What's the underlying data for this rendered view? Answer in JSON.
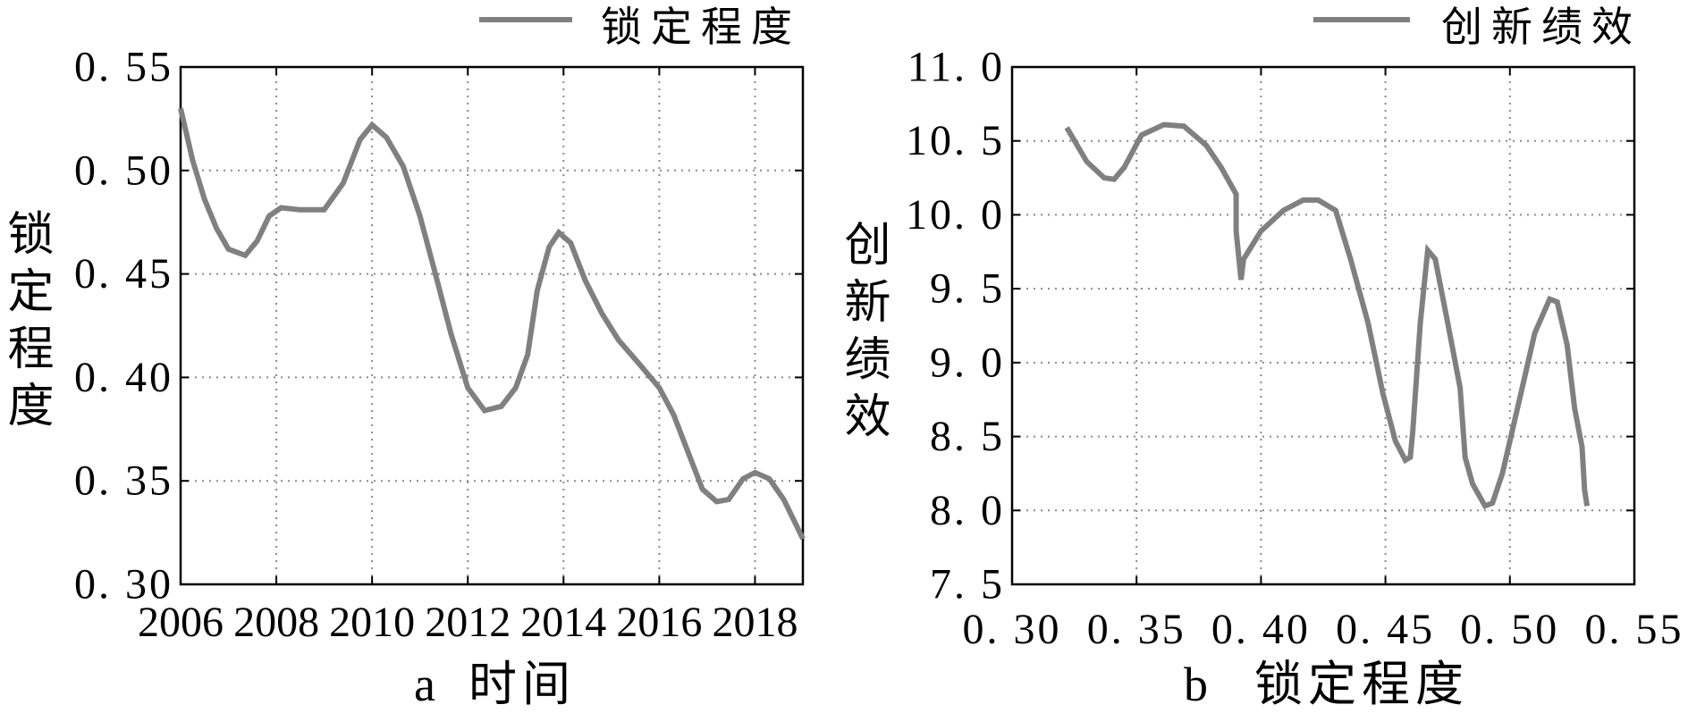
{
  "chart_data": [
    {
      "type": "line",
      "panel_label": "a",
      "title": "",
      "xlabel": "时间",
      "ylabel": "锁定程度",
      "xlim": [
        2006,
        2019
      ],
      "ylim": [
        0.3,
        0.55
      ],
      "xticks": [
        2006,
        2008,
        2010,
        2012,
        2014,
        2016,
        2018
      ],
      "xtick_labels": [
        "2006",
        "2008",
        "2010",
        "2012",
        "2014",
        "2016",
        "2018"
      ],
      "yticks": [
        0.3,
        0.35,
        0.4,
        0.45,
        0.5,
        0.55
      ],
      "ytick_labels": [
        "0. 30",
        "0. 35",
        "0. 40",
        "0. 45",
        "0. 50",
        "0. 55"
      ],
      "grid": true,
      "legend_position": "top-right",
      "series": [
        {
          "name": "锁定程度",
          "color": "#808080",
          "x": [
            2006.0,
            2006.25,
            2006.5,
            2006.75,
            2007.0,
            2007.35,
            2007.6,
            2007.85,
            2008.1,
            2008.5,
            2009.0,
            2009.4,
            2009.75,
            2010.0,
            2010.3,
            2010.65,
            2011.0,
            2011.3,
            2011.65,
            2012.0,
            2012.35,
            2012.7,
            2013.0,
            2013.25,
            2013.45,
            2013.7,
            2013.9,
            2014.15,
            2014.45,
            2014.8,
            2015.15,
            2015.6,
            2016.0,
            2016.3,
            2016.6,
            2016.9,
            2017.2,
            2017.45,
            2017.75,
            2018.0,
            2018.3,
            2018.6,
            2019.0
          ],
          "y": [
            0.53,
            0.505,
            0.486,
            0.472,
            0.462,
            0.459,
            0.466,
            0.478,
            0.482,
            0.481,
            0.481,
            0.494,
            0.515,
            0.522,
            0.516,
            0.502,
            0.478,
            0.452,
            0.421,
            0.395,
            0.384,
            0.386,
            0.395,
            0.411,
            0.442,
            0.463,
            0.47,
            0.465,
            0.447,
            0.431,
            0.418,
            0.406,
            0.395,
            0.382,
            0.364,
            0.346,
            0.34,
            0.341,
            0.351,
            0.354,
            0.351,
            0.341,
            0.322
          ]
        }
      ]
    },
    {
      "type": "line",
      "panel_label": "b",
      "title": "",
      "xlabel": "锁定程度",
      "ylabel": "创新绩效",
      "xlim": [
        0.3,
        0.55
      ],
      "ylim": [
        7.5,
        11.0
      ],
      "xticks": [
        0.3,
        0.35,
        0.4,
        0.45,
        0.5,
        0.55
      ],
      "xtick_labels": [
        "0. 30",
        "0. 35",
        "0. 40",
        "0. 45",
        "0. 50",
        "0. 55"
      ],
      "yticks": [
        7.5,
        8.0,
        8.5,
        9.0,
        9.5,
        10.0,
        10.5,
        11.0
      ],
      "ytick_labels": [
        "7. 5",
        "8. 0",
        "8. 5",
        "9. 0",
        "9. 5",
        "10. 0",
        "10. 5",
        "11. 0"
      ],
      "grid": true,
      "legend_position": "top-right",
      "series": [
        {
          "name": "创新绩效",
          "color": "#808080",
          "x": [
            0.322,
            0.33,
            0.337,
            0.341,
            0.345,
            0.352,
            0.361,
            0.369,
            0.378,
            0.384,
            0.39,
            0.39,
            0.392,
            0.393,
            0.4,
            0.409,
            0.417,
            0.423,
            0.43,
            0.436,
            0.443,
            0.449,
            0.454,
            0.458,
            0.46,
            0.461,
            0.464,
            0.467,
            0.47,
            0.475,
            0.48,
            0.482,
            0.485,
            0.49,
            0.493,
            0.497,
            0.504,
            0.51,
            0.516,
            0.519,
            0.523,
            0.526,
            0.529,
            0.53,
            0.531
          ],
          "y": [
            10.59,
            10.36,
            10.25,
            10.24,
            10.32,
            10.54,
            10.61,
            10.6,
            10.47,
            10.32,
            10.14,
            9.89,
            9.56,
            9.7,
            9.89,
            10.03,
            10.1,
            10.1,
            10.03,
            9.7,
            9.27,
            8.79,
            8.47,
            8.34,
            8.36,
            8.54,
            9.27,
            9.76,
            9.7,
            9.27,
            8.83,
            8.36,
            8.18,
            8.03,
            8.05,
            8.25,
            8.76,
            9.2,
            9.43,
            9.41,
            9.12,
            8.69,
            8.43,
            8.14,
            8.03
          ]
        }
      ]
    }
  ]
}
